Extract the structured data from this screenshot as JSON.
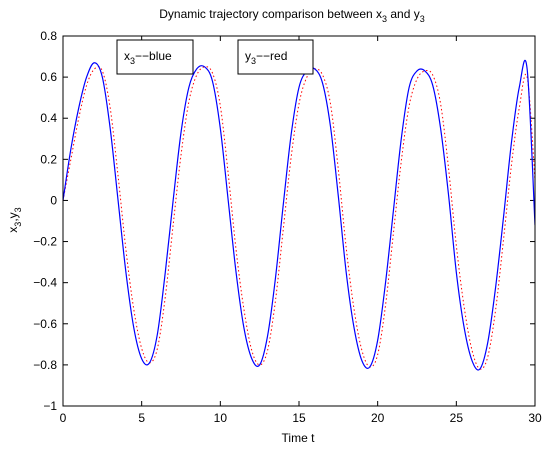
{
  "chart_data": {
    "type": "line",
    "title_parts": {
      "prefix": "Dynamic trajectory comparison between x",
      "sub1": "3",
      "middle": " and y",
      "sub2": "3"
    },
    "xlabel": "Time t",
    "ylabel_parts": {
      "a": "x",
      "a_sub": "3",
      "comma": ",",
      "b": "y",
      "b_sub": "3"
    },
    "xlim": [
      0,
      30
    ],
    "ylim": [
      -1,
      0.8
    ],
    "xticks": [
      0,
      5,
      10,
      15,
      20,
      25,
      30
    ],
    "yticks": [
      -1,
      -0.8,
      -0.6,
      -0.4,
      -0.2,
      0,
      0.2,
      0.4,
      0.6,
      0.8
    ],
    "ytick_labels": [
      "−1",
      "−0.8",
      "−0.6",
      "−0.4",
      "−0.2",
      "0",
      "0.2",
      "0.4",
      "0.6",
      "0.8"
    ],
    "grid": false,
    "legend": [
      {
        "var": "x",
        "sub": "3",
        "desc": "−−blue",
        "placement": "top-left"
      },
      {
        "var": "y",
        "sub": "3",
        "desc": "−−red",
        "placement": "top-middle"
      }
    ],
    "colors": {
      "series_blue": "#0000ff",
      "series_red": "#ff0000",
      "axes": "#000000"
    },
    "series": [
      {
        "color_key": "series_blue",
        "style": "solid",
        "x": [
          0,
          0.5,
          1.0,
          1.5,
          2.0,
          2.5,
          3.0,
          3.5,
          4.0,
          4.5,
          5.0,
          5.5,
          6.0,
          6.5,
          7.0,
          7.5,
          8.0,
          8.5,
          9.0,
          9.5,
          10.0,
          10.5,
          11.0,
          11.5,
          12.0,
          12.5,
          13.0,
          13.5,
          14.0,
          14.5,
          15.0,
          15.5,
          16.0,
          16.5,
          17.0,
          17.5,
          18.0,
          18.5,
          19.0,
          19.5,
          20.0,
          20.5,
          21.0,
          21.5,
          22.0,
          22.5,
          23.0,
          23.5,
          24.0,
          24.5,
          25.0,
          25.5,
          26.0,
          26.5,
          27.0,
          27.5,
          28.0,
          28.5,
          29.0,
          29.5,
          30.0
        ],
        "y": [
          0.0,
          0.25,
          0.45,
          0.6,
          0.67,
          0.6,
          0.35,
          0.0,
          -0.35,
          -0.62,
          -0.77,
          -0.79,
          -0.65,
          -0.35,
          0.0,
          0.33,
          0.55,
          0.64,
          0.65,
          0.58,
          0.35,
          0.0,
          -0.35,
          -0.62,
          -0.77,
          -0.8,
          -0.66,
          -0.38,
          -0.02,
          0.32,
          0.55,
          0.63,
          0.64,
          0.57,
          0.36,
          0.02,
          -0.35,
          -0.62,
          -0.78,
          -0.81,
          -0.68,
          -0.4,
          -0.05,
          0.3,
          0.55,
          0.63,
          0.63,
          0.56,
          0.35,
          0.03,
          -0.35,
          -0.62,
          -0.78,
          -0.82,
          -0.69,
          -0.42,
          -0.08,
          0.28,
          0.55,
          0.64,
          -0.12
        ]
      },
      {
        "color_key": "series_red",
        "style": "dotted",
        "x": [
          0,
          0.5,
          1.0,
          1.5,
          2.0,
          2.5,
          3.0,
          3.5,
          4.0,
          4.5,
          5.0,
          5.5,
          6.0,
          6.5,
          7.0,
          7.5,
          8.0,
          8.5,
          9.0,
          9.5,
          10.0,
          10.5,
          11.0,
          11.5,
          12.0,
          12.5,
          13.0,
          13.5,
          14.0,
          14.5,
          15.0,
          15.5,
          16.0,
          16.5,
          17.0,
          17.5,
          18.0,
          18.5,
          19.0,
          19.5,
          20.0,
          20.5,
          21.0,
          21.5,
          22.0,
          22.5,
          23.0,
          23.5,
          24.0,
          24.5,
          25.0,
          25.5,
          26.0,
          26.5,
          27.0,
          27.5,
          28.0,
          28.5,
          29.0,
          29.5,
          30.0
        ],
        "y": [
          0.0,
          0.2,
          0.4,
          0.56,
          0.64,
          0.63,
          0.45,
          0.12,
          -0.24,
          -0.53,
          -0.72,
          -0.79,
          -0.72,
          -0.47,
          -0.12,
          0.22,
          0.48,
          0.61,
          0.65,
          0.62,
          0.46,
          0.13,
          -0.24,
          -0.53,
          -0.73,
          -0.8,
          -0.73,
          -0.49,
          -0.14,
          0.21,
          0.47,
          0.6,
          0.64,
          0.61,
          0.47,
          0.15,
          -0.23,
          -0.53,
          -0.73,
          -0.81,
          -0.75,
          -0.51,
          -0.16,
          0.19,
          0.46,
          0.59,
          0.63,
          0.61,
          0.47,
          0.16,
          -0.22,
          -0.52,
          -0.73,
          -0.82,
          -0.76,
          -0.53,
          -0.19,
          0.17,
          0.45,
          0.6,
          0.1
        ]
      }
    ]
  }
}
